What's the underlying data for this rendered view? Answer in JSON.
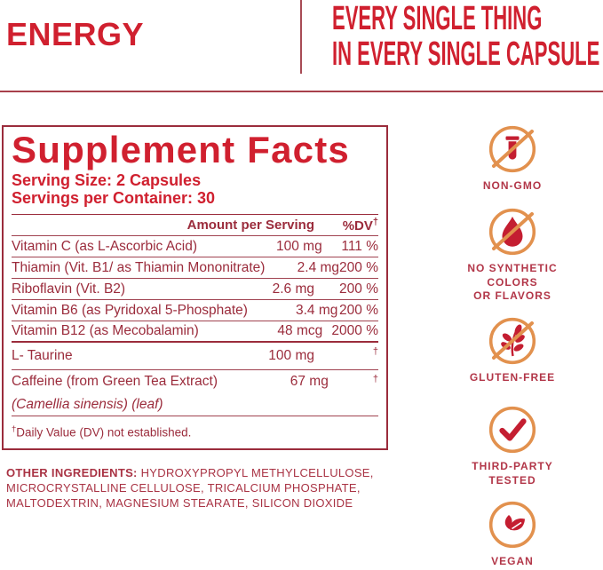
{
  "header": {
    "brand_title": "ENERGY",
    "tagline_line1": "EVERY SINGLE THING",
    "tagline_line2": "IN EVERY SINGLE CAPSULE"
  },
  "supplement_facts": {
    "title": "Supplement Facts",
    "serving_size": "Serving Size: 2 Capsules",
    "servings_per_container": "Servings per Container: 30",
    "columns": {
      "amount": "Amount per Serving",
      "dv": "%DV",
      "dv_sup": "†"
    },
    "rows": [
      {
        "name": "Vitamin C (as L-Ascorbic Acid)",
        "amount": "100 mg",
        "dv": "111 %"
      },
      {
        "name": "Thiamin (Vit. B1/ as Thiamin Mononitrate)",
        "amount": "2.4 mg",
        "dv": "200 %"
      },
      {
        "name": "Riboflavin (Vit. B2)",
        "amount": "2.6 mg",
        "dv": "200 %"
      },
      {
        "name": "Vitamin B6 (as Pyridoxal 5-Phosphate)",
        "amount": "3.4 mg",
        "dv": "200 %"
      },
      {
        "name": "Vitamin B12 (as Mecobalamin)",
        "amount": "48 mcg",
        "dv": "2000 %",
        "thick_bottom": true
      },
      {
        "name": "L- Taurine",
        "amount": "100 mg",
        "dv": "†",
        "dv_sup": true,
        "tall": true
      },
      {
        "name": "Caffeine (from Green Tea Extract)",
        "amount": "67 mg",
        "dv": "†",
        "dv_sup": true,
        "no_bottom": true,
        "mid": true
      },
      {
        "name": "(Camellia sinensis) (leaf)",
        "amount": "",
        "dv": "",
        "italic": true,
        "mid": true
      }
    ],
    "footnote_dagger": "†",
    "footnote_text": "Daily Value (DV) not established."
  },
  "other_ingredients": {
    "label": "OTHER INGREDIENTS:",
    "text": " HYDROXYPROPYL METHYLCELLULOSE, MICROCRYSTALLINE CELLULOSE, TRICALCIUM PHOSPHATE, MALTODEXTRIN, MAGNESIUM STEARATE, SILICON DIOXIDE"
  },
  "badges": [
    {
      "icon": "crossed-test-tube-icon",
      "label_lines": [
        "NON-GMO"
      ]
    },
    {
      "icon": "crossed-droplet-icon",
      "label_lines": [
        "NO SYNTHETIC",
        "COLORS",
        "OR FLAVORS"
      ]
    },
    {
      "icon": "crossed-wheat-icon",
      "label_lines": [
        "GLUTEN-FREE"
      ]
    },
    {
      "icon": "checkmark-icon",
      "label_lines": [
        "THIRD-PARTY",
        "TESTED"
      ]
    },
    {
      "icon": "leaves-icon",
      "label_lines": [
        "VEGAN"
      ]
    }
  ],
  "colors": {
    "brand_red": "#D0202F",
    "table_maroon": "#9B2C3C",
    "ingredients_red": "#A93344",
    "badge_label_red": "#B23648",
    "badge_circle_orange": "#E2914E",
    "badge_glyph_red": "#C41E31"
  }
}
